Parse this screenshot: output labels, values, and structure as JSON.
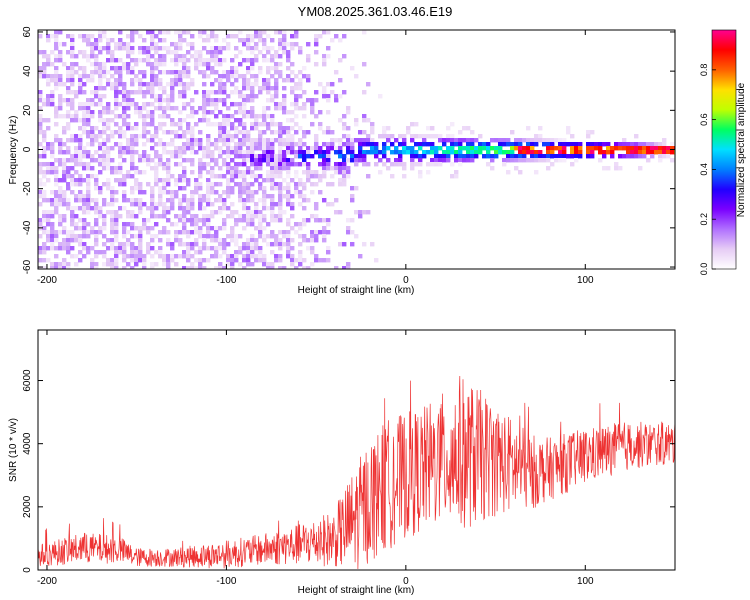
{
  "title": "YM08.2025.361.03.46.E19",
  "chart_data": [
    {
      "type": "heatmap",
      "title": "YM08.2025.361.03.46.E19",
      "xlabel": "Height of straight line (km)",
      "ylabel": "Frequency (Hz)",
      "xlim": [
        -205,
        150
      ],
      "ylim": [
        -61,
        61
      ],
      "xticks": [
        "-200",
        "-100",
        "0",
        "100"
      ],
      "yticks": [
        "60",
        "40",
        "20",
        "0",
        "-20",
        "-40",
        "-60"
      ],
      "colorbar": {
        "label": "Normalized spectral amplitude",
        "range": [
          0,
          0.96
        ],
        "ticks": [
          "0.0",
          "0.2",
          "0.4",
          "0.6",
          "0.8"
        ],
        "colors": [
          "#ffffff",
          "#e6ccf5",
          "#b070ff",
          "#7a00ff",
          "#2000ff",
          "#0080ff",
          "#00e0ff",
          "#00ff60",
          "#c0ff00",
          "#ffe000",
          "#ff6000",
          "#ff0000",
          "#ff0090"
        ]
      },
      "description_bands": [
        {
          "x_range": [
            -205,
            -40
          ],
          "freq_range": [
            -61,
            61
          ],
          "amplitude": [
            0.02,
            0.15
          ],
          "kind": "broadband noise"
        },
        {
          "x_range": [
            -100,
            150
          ],
          "freq_center": 0,
          "freq_halfwidth": [
            12,
            3
          ],
          "amplitude": [
            0.1,
            0.95
          ],
          "kind": "meteor signal"
        }
      ]
    },
    {
      "type": "line",
      "xlabel": "Height of straight line (km)",
      "ylabel": "SNR (10 * v/v)",
      "xlim": [
        -205,
        150
      ],
      "ylim": [
        0,
        7600
      ],
      "xticks": [
        "-200",
        "-100",
        "0",
        "100"
      ],
      "yticks": [
        "0",
        "2000",
        "4000",
        "6000"
      ],
      "series": [
        {
          "name": "SNR",
          "color": "#ee3333",
          "envelope": {
            "x": [
              -205,
              -180,
              -160,
              -150,
              -130,
              -110,
              -100,
              -80,
              -60,
              -40,
              -30,
              -20,
              -10,
              0,
              10,
              20,
              30,
              40,
              50,
              60,
              70,
              80,
              100,
              120,
              140,
              150
            ],
            "mean": [
              450,
              700,
              650,
              400,
              400,
              450,
              500,
              650,
              800,
              1000,
              1500,
              2200,
              2700,
              3000,
              3200,
              3500,
              3700,
              3600,
              3500,
              3300,
              3100,
              3200,
              3600,
              3900,
              4000,
              4000
            ],
            "amp": [
              350,
              500,
              450,
              300,
              300,
              400,
              450,
              500,
              650,
              900,
              1600,
              2000,
              2100,
              2000,
              2000,
              2100,
              2500,
              2200,
              1800,
              1500,
              1200,
              1000,
              900,
              800,
              700,
              700
            ]
          }
        }
      ]
    }
  ]
}
